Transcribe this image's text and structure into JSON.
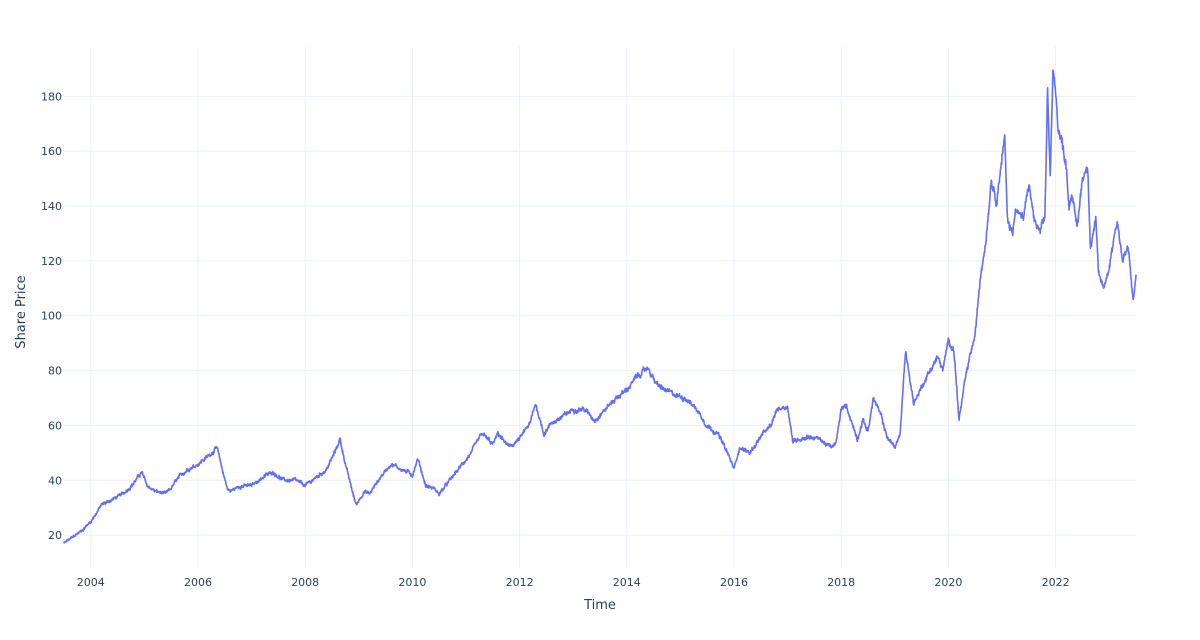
{
  "chart_data": {
    "type": "line",
    "title": "",
    "xlabel": "Time",
    "ylabel": "Share Price",
    "xlim": [
      2003.5,
      2023.5
    ],
    "ylim": [
      8,
      198
    ],
    "grid": true,
    "line_color": "#636efa",
    "x_ticks": [
      2004,
      2006,
      2008,
      2010,
      2012,
      2014,
      2016,
      2018,
      2020,
      2022
    ],
    "x_tick_labels": [
      "2004",
      "2006",
      "2008",
      "2010",
      "2012",
      "2014",
      "2016",
      "2018",
      "2020",
      "2022"
    ],
    "y_ticks": [
      20,
      40,
      60,
      80,
      100,
      120,
      140,
      160,
      180
    ],
    "y_tick_labels": [
      "20",
      "40",
      "60",
      "80",
      "100",
      "120",
      "140",
      "160",
      "180"
    ],
    "series": [
      {
        "name": "",
        "x": [
          2003.5,
          2003.65,
          2003.85,
          2004.0,
          2004.2,
          2004.4,
          2004.6,
          2004.8,
          2004.95,
          2005.05,
          2005.2,
          2005.4,
          2005.5,
          2005.6,
          2005.8,
          2006.0,
          2006.2,
          2006.35,
          2006.45,
          2006.55,
          2006.6,
          2006.8,
          2007.0,
          2007.2,
          2007.4,
          2007.6,
          2007.8,
          2008.0,
          2008.2,
          2008.4,
          2008.55,
          2008.65,
          2008.75,
          2008.85,
          2008.95,
          2009.1,
          2009.2,
          2009.4,
          2009.6,
          2009.8,
          2010.0,
          2010.1,
          2010.25,
          2010.4,
          2010.5,
          2010.7,
          2010.9,
          2011.1,
          2011.3,
          2011.5,
          2011.6,
          2011.8,
          2012.0,
          2012.2,
          2012.3,
          2012.45,
          2012.6,
          2012.8,
          2013.0,
          2013.2,
          2013.4,
          2013.6,
          2013.8,
          2014.0,
          2014.2,
          2014.4,
          2014.55,
          2014.7,
          2014.9,
          2015.1,
          2015.3,
          2015.5,
          2015.7,
          2015.9,
          2016.0,
          2016.1,
          2016.3,
          2016.5,
          2016.7,
          2016.8,
          2017.0,
          2017.1,
          2017.2,
          2017.4,
          2017.6,
          2017.8,
          2017.9,
          2018.0,
          2018.1,
          2018.3,
          2018.4,
          2018.5,
          2018.6,
          2018.75,
          2018.85,
          2019.0,
          2019.1,
          2019.2,
          2019.3,
          2019.35,
          2019.45,
          2019.6,
          2019.8,
          2019.9,
          2020.0,
          2020.1,
          2020.2,
          2020.3,
          2020.4,
          2020.5,
          2020.6,
          2020.7,
          2020.8,
          2020.9,
          2021.0,
          2021.05,
          2021.1,
          2021.2,
          2021.25,
          2021.3,
          2021.4,
          2021.5,
          2021.6,
          2021.7,
          2021.8,
          2021.85,
          2021.9,
          2021.95,
          2022.0,
          2022.05,
          2022.1,
          2022.2,
          2022.25,
          2022.3,
          2022.4,
          2022.5,
          2022.6,
          2022.65,
          2022.75,
          2022.8,
          2022.9,
          2023.0,
          2023.1,
          2023.15,
          2023.25,
          2023.35,
          2023.45,
          2023.5
        ],
        "y": [
          17,
          19,
          22,
          25,
          31,
          33,
          35,
          39,
          43,
          38,
          36,
          35,
          37,
          40,
          44,
          46,
          49,
          52,
          44,
          37,
          36,
          38,
          38,
          41,
          43,
          40,
          40,
          38,
          41,
          44,
          50,
          55,
          46,
          38,
          31,
          36,
          35,
          41,
          46,
          44,
          42,
          48,
          38,
          37,
          35,
          40,
          45,
          50,
          57,
          53,
          57,
          52,
          55,
          61,
          68,
          57,
          61,
          63,
          66,
          66,
          62,
          66,
          70,
          73,
          78,
          81,
          75,
          73,
          71,
          70,
          66,
          60,
          57,
          49,
          44,
          52,
          50,
          56,
          60,
          66,
          67,
          54,
          55,
          56,
          55,
          52,
          53,
          66,
          67,
          55,
          62,
          58,
          70,
          63,
          56,
          52,
          57,
          87,
          75,
          68,
          72,
          78,
          85,
          80,
          91,
          88,
          62,
          75,
          85,
          93,
          115,
          128,
          150,
          142,
          158,
          165,
          135,
          130,
          140,
          138,
          135,
          148,
          135,
          130,
          135,
          183,
          150,
          188,
          183,
          168,
          165,
          155,
          140,
          145,
          132,
          150,
          155,
          125,
          135,
          115,
          110,
          118,
          130,
          135,
          120,
          125,
          105,
          115
        ]
      }
    ]
  }
}
